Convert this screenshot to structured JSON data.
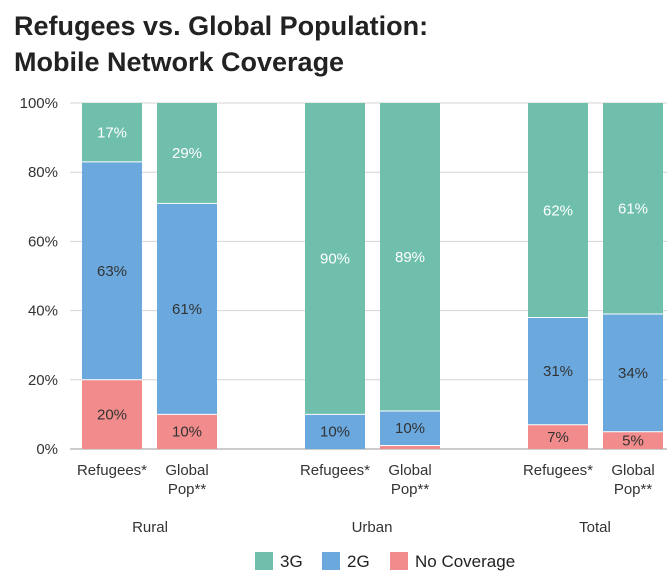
{
  "chart_data": {
    "type": "bar",
    "stacked": true,
    "title": "Refugees vs. Global Population: Mobile Network Coverage",
    "title_lines": [
      "Refugees vs. Global Population:",
      "Mobile Network Coverage"
    ],
    "groups": [
      "Rural",
      "Urban",
      "Total"
    ],
    "bars": [
      {
        "group": "Rural",
        "label": [
          "Refugees*"
        ]
      },
      {
        "group": "Rural",
        "label": [
          "Global",
          "Pop**"
        ]
      },
      {
        "group": "Urban",
        "label": [
          "Refugees*"
        ]
      },
      {
        "group": "Urban",
        "label": [
          "Global",
          "Pop**"
        ]
      },
      {
        "group": "Total",
        "label": [
          "Refugees*"
        ]
      },
      {
        "group": "Total",
        "label": [
          "Global",
          "Pop**"
        ]
      }
    ],
    "series": [
      {
        "name": "No Coverage",
        "color": "#f28b8b",
        "values": [
          20,
          10,
          0,
          1,
          7,
          5
        ],
        "labels": [
          "20%",
          "10%",
          "",
          "",
          "7%",
          "5%"
        ]
      },
      {
        "name": "2G",
        "color": "#6aa8de",
        "values": [
          63,
          61,
          10,
          10,
          31,
          34
        ],
        "labels": [
          "63%",
          "61%",
          "10%",
          "10%",
          "31%",
          "34%"
        ]
      },
      {
        "name": "3G",
        "color": "#6fbfac",
        "values": [
          17,
          29,
          90,
          89,
          62,
          61
        ],
        "labels": [
          "17%",
          "29%",
          "90%",
          "89%",
          "62%",
          "61%"
        ]
      }
    ],
    "ylim": [
      0,
      100
    ],
    "yticks": [
      "0%",
      "20%",
      "40%",
      "60%",
      "80%",
      "100%"
    ],
    "ytick_values": [
      0,
      20,
      40,
      60,
      80,
      100
    ],
    "grid": true,
    "legend_position": "bottom",
    "legend": [
      {
        "name": "3G",
        "color": "#6fbfac"
      },
      {
        "name": "2G",
        "color": "#6aa8de"
      },
      {
        "name": "No Coverage",
        "color": "#f28b8b"
      }
    ]
  }
}
